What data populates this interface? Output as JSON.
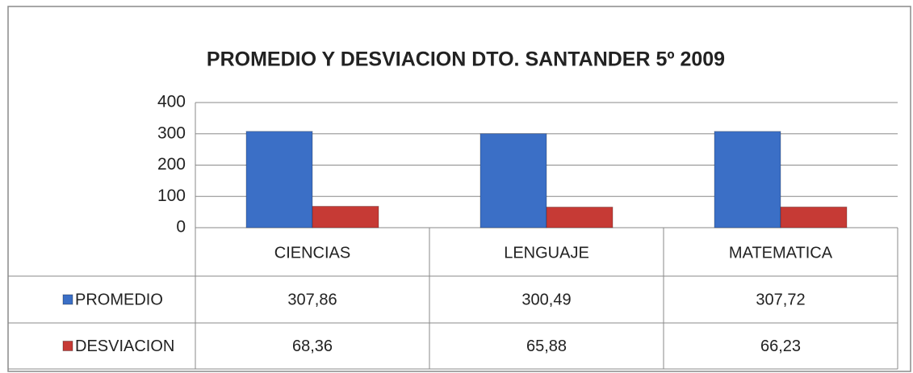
{
  "chart_data": {
    "type": "bar",
    "title": "PROMEDIO Y DESVIACION DTO. SANTANDER 5º 2009",
    "categories": [
      "CIENCIAS",
      "LENGUAJE",
      "MATEMATICA"
    ],
    "series": [
      {
        "name": "PROMEDIO",
        "color": "#3b6fc6",
        "values": [
          307.86,
          300.49,
          307.72
        ],
        "value_labels": [
          "307,86",
          "300,49",
          "307,72"
        ]
      },
      {
        "name": "DESVIACION",
        "color": "#c63a35",
        "values": [
          68.36,
          65.88,
          66.23
        ],
        "value_labels": [
          "68,36",
          "65,88",
          "66,23"
        ]
      }
    ],
    "ylim": [
      0,
      400
    ],
    "yticks": [
      0,
      100,
      200,
      300,
      400
    ],
    "grid": true,
    "data_table": true
  }
}
